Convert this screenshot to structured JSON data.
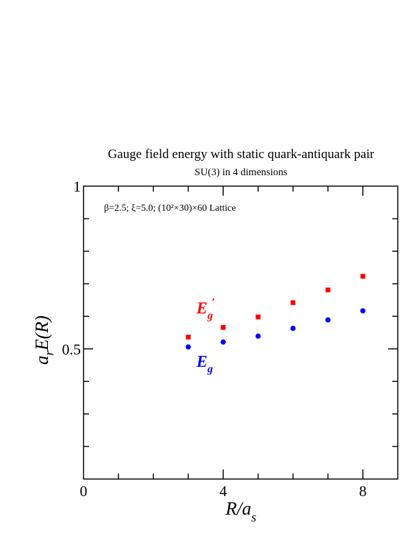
{
  "chart_data": {
    "type": "scatter",
    "title": "Gauge field energy with static quark-antiquark pair",
    "subtitle": "SU(3) in 4 dimensions",
    "annotation": "β=2.5;  ξ=5.0; (10²×30)×60 Lattice",
    "xlabel": {
      "main": "R/a",
      "sub": "s"
    },
    "ylabel": {
      "pre": "a",
      "sub": "r",
      "post": "E(R)"
    },
    "xlim": [
      0,
      9
    ],
    "ylim": [
      0.1,
      1.0
    ],
    "x_ticks": [
      0,
      4,
      8
    ],
    "x_tick_labels": [
      "0",
      "4",
      "8"
    ],
    "y_ticks": [
      0.5,
      1.0
    ],
    "y_tick_labels": [
      "0.5",
      "1"
    ],
    "series": [
      {
        "label_main": "E",
        "label_sub": "g",
        "label_prime": "′",
        "color": "#ff0000",
        "marker": "square",
        "x": [
          3,
          4,
          5,
          6,
          7,
          8
        ],
        "y": [
          0.536,
          0.566,
          0.598,
          0.642,
          0.681,
          0.723
        ]
      },
      {
        "label_main": "E",
        "label_sub": "g",
        "label_prime": "",
        "color": "#0000ff",
        "marker": "circle",
        "x": [
          3,
          4,
          5,
          6,
          7,
          8
        ],
        "y": [
          0.506,
          0.521,
          0.539,
          0.563,
          0.589,
          0.617
        ]
      }
    ]
  }
}
